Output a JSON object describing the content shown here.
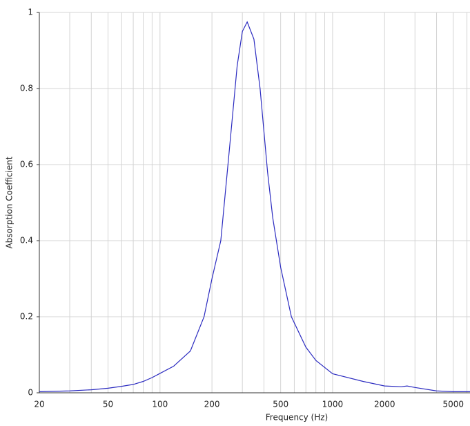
{
  "chart_data": {
    "type": "line",
    "xlabel": "Frequency (Hz)",
    "ylabel": "Absorption Coefficient",
    "x": [
      20,
      30,
      40,
      50,
      60,
      70,
      80,
      90,
      100,
      120,
      150,
      180,
      200,
      225,
      250,
      280,
      300,
      320,
      350,
      380,
      420,
      450,
      500,
      577,
      700,
      800,
      1000,
      1500,
      2000,
      2500,
      2700,
      3000,
      4000,
      5000,
      6250
    ],
    "values": [
      0.003,
      0.005,
      0.008,
      0.012,
      0.017,
      0.022,
      0.03,
      0.04,
      0.051,
      0.07,
      0.11,
      0.2,
      0.3,
      0.4,
      0.62,
      0.86,
      0.95,
      0.975,
      0.93,
      0.8,
      0.58,
      0.46,
      0.33,
      0.2,
      0.12,
      0.085,
      0.05,
      0.03,
      0.018,
      0.016,
      0.018,
      0.014,
      0.005,
      0.003,
      0.003
    ],
    "color": "#2b2bc0",
    "xscale": "log",
    "xlim": [
      20,
      6250
    ],
    "xticks": [
      20,
      50,
      100,
      200,
      500,
      1000,
      2000,
      5000
    ],
    "x_grid": [
      30,
      40,
      60,
      70,
      80,
      90,
      300,
      400,
      600,
      700,
      800,
      900,
      3000,
      4000,
      6000
    ],
    "ylim": [
      0,
      1
    ],
    "yticks": [
      0,
      0.2,
      0.4,
      0.6,
      0.8,
      1
    ],
    "grid": true
  }
}
